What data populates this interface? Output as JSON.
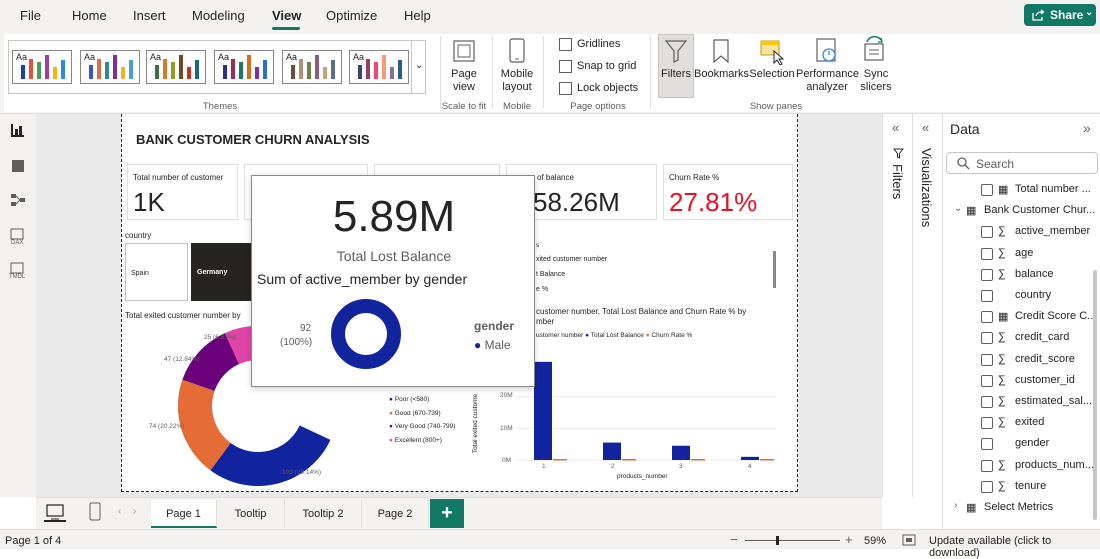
{
  "menu": [
    "File",
    "Home",
    "Insert",
    "Modeling",
    "View",
    "Optimize",
    "Help"
  ],
  "share_label": "Share",
  "ribbon": {
    "themes_label": "Themes",
    "page_view": "Page view",
    "scale_label": "Scale to fit",
    "mobile_layout": "Mobile layout",
    "mobile_label": "Mobile",
    "gridlines": "Gridlines",
    "snap_to_grid": "Snap to grid",
    "lock_objects": "Lock objects",
    "page_options_label": "Page options",
    "filters": "Filters",
    "bookmarks": "Bookmarks",
    "selection": "Selection",
    "performance": "Performance analyzer",
    "sync": "Sync slicers",
    "show_panes_label": "Show panes"
  },
  "theme_colors": [
    [
      "#1f3fa4",
      "#e8503a",
      "#4b9b5a",
      "#9b3fa0",
      "#f4b400",
      "#2b8ad9"
    ],
    [
      "#3d54c6",
      "#e06c47",
      "#2f8c8c",
      "#7a2f9a",
      "#e6b82e",
      "#45a0d8"
    ],
    [
      "#3d6e4a",
      "#d47a2c",
      "#8d9f27",
      "#6b4a25",
      "#c2301f",
      "#1a6b6b"
    ],
    [
      "#2e2e8a",
      "#9b2f59",
      "#1e7a5c",
      "#d46d1e",
      "#7b2fa8",
      "#2b6fce"
    ],
    [
      "#6b4f3a",
      "#b08f78",
      "#6d7f4a",
      "#8e5b7f",
      "#c4a477",
      "#5a6d8a"
    ],
    [
      "#41436a",
      "#984063",
      "#f64668",
      "#fe9677",
      "#8a6f9e",
      "#2e5b88"
    ]
  ],
  "report": {
    "title": "BANK CUSTOMER CHURN ANALYSIS",
    "kpis": [
      {
        "label": "Total number of customer",
        "value": "1K"
      },
      {
        "label": "",
        "value": ""
      },
      {
        "label": "",
        "value": ""
      },
      {
        "label": "of balance",
        "value": "58.26M"
      },
      {
        "label": "Churn Rate %",
        "value": "27.81%"
      }
    ],
    "slicer_title": "country",
    "slicer_items": [
      "Spain",
      "Germany"
    ],
    "donut_title": "Total exited customer number by",
    "donut_labels": [
      "25 (6.83%)",
      "47 (12.84%)",
      "74 (20.22%)",
      "103 (28.14%)"
    ],
    "legend_partial": [
      "s",
      "xited customer number",
      "t Balance",
      "e %"
    ],
    "combo_title": "customer number, Total Lost Balance and Churn Rate % by",
    "combo_title2": "mber",
    "combo_legend": [
      "ustomer number",
      "Total Lost Balance",
      "Churn Rate %"
    ],
    "credit_legend": [
      "Poor (<580)",
      "Good (670-739)",
      "Very Good (740-799)",
      "Excellent (800+)"
    ],
    "y_axis_label": "Total exited custome",
    "x_axis_label": "products_number",
    "y_ticks": [
      "20M",
      "10M",
      "0M"
    ],
    "x_ticks": [
      "1",
      "2",
      "3",
      "4"
    ]
  },
  "chart_data": [
    {
      "type": "pie",
      "title": "Total exited customer number by",
      "values": [
        25,
        47,
        74,
        103
      ],
      "labels": [
        "25 (6.83%)",
        "47 (12.84%)",
        "74 (20.22%)",
        "103 (28.14%)"
      ],
      "colors": [
        "#e044a7",
        "#6b007b",
        "#e66c37",
        "#12239e"
      ]
    },
    {
      "type": "bar",
      "title": "customer number, Total Lost Balance and Churn Rate % by",
      "xlabel": "products_number",
      "ylabel": "Total exited custome",
      "categories": [
        "1",
        "2",
        "3",
        "4"
      ],
      "series": [
        {
          "name": "Total Lost Balance",
          "values": [
            31,
            5.5,
            4.5,
            1
          ]
        }
      ],
      "ylim": [
        0,
        30
      ]
    },
    {
      "type": "pie",
      "title": "Sum of active_member by gender",
      "values": [
        92
      ],
      "labels": [
        "92 (100%)"
      ],
      "categories": [
        "Male"
      ],
      "colors": [
        "#12239e"
      ]
    }
  ],
  "tooltip": {
    "value": "5.89M",
    "label": "Total Lost Balance",
    "chart_title": "Sum of active_member by gender",
    "donut_label_1": "92",
    "donut_label_2": "(100%)",
    "legend_title": "gender",
    "legend_item": "Male"
  },
  "panes": {
    "filters": "Filters",
    "visualizations": "Visualizations",
    "data_title": "Data",
    "search_placeholder": "Search"
  },
  "fields": [
    {
      "label": "Total number ...",
      "icon": "▦",
      "indent": 0
    },
    {
      "label": "Bank Customer Chur...",
      "icon": "▦",
      "indent": -1
    },
    {
      "label": "active_member",
      "icon": "∑",
      "indent": 1
    },
    {
      "label": "age",
      "icon": "∑",
      "indent": 1
    },
    {
      "label": "balance",
      "icon": "∑",
      "indent": 1
    },
    {
      "label": "country",
      "icon": "",
      "indent": 1
    },
    {
      "label": "Credit Score C...",
      "icon": "▦",
      "indent": 1
    },
    {
      "label": "credit_card",
      "icon": "∑",
      "indent": 1
    },
    {
      "label": "credit_score",
      "icon": "∑",
      "indent": 1
    },
    {
      "label": "customer_id",
      "icon": "∑",
      "indent": 1
    },
    {
      "label": "estimated_sal...",
      "icon": "∑",
      "indent": 1
    },
    {
      "label": "exited",
      "icon": "∑",
      "indent": 1
    },
    {
      "label": "gender",
      "icon": "",
      "indent": 1
    },
    {
      "label": "products_num...",
      "icon": "∑",
      "indent": 1
    },
    {
      "label": "tenure",
      "icon": "∑",
      "indent": 1
    },
    {
      "label": "Select Metrics",
      "icon": "▦",
      "indent": -2
    }
  ],
  "tabs": [
    "Page 1",
    "Tooltip",
    "Tooltip 2",
    "Page 2"
  ],
  "add_tab": "+",
  "status": {
    "page": "Page 1 of 4",
    "zoom": "59%",
    "update": "Update available (click to download)"
  }
}
